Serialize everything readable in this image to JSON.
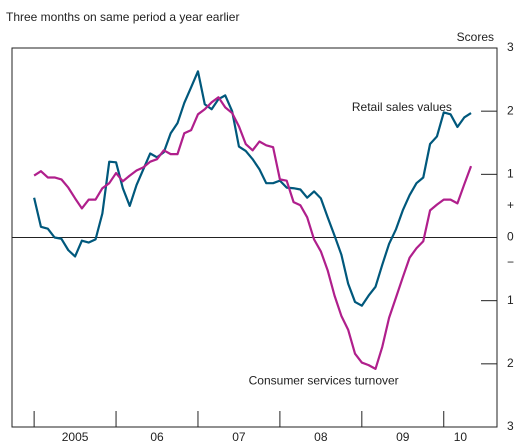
{
  "chart_data": {
    "type": "line",
    "subtitle": "Three months on same period a year earlier",
    "y_axis_label": "Scores",
    "sign_labels": [
      "+",
      "−"
    ],
    "x": [
      2005,
      2005.083,
      2005.167,
      2005.25,
      2005.333,
      2005.417,
      2005.5,
      2005.583,
      2005.667,
      2005.75,
      2005.833,
      2005.917,
      2006,
      2006.083,
      2006.167,
      2006.25,
      2006.333,
      2006.417,
      2006.5,
      2006.583,
      2006.667,
      2006.75,
      2006.833,
      2006.917,
      2007,
      2007.083,
      2007.167,
      2007.25,
      2007.333,
      2007.417,
      2007.5,
      2007.583,
      2007.667,
      2007.75,
      2007.833,
      2007.917,
      2008,
      2008.083,
      2008.167,
      2008.25,
      2008.333,
      2008.417,
      2008.5,
      2008.583,
      2008.667,
      2008.75,
      2008.833,
      2008.917,
      2009,
      2009.083,
      2009.167,
      2009.25,
      2009.333,
      2009.417,
      2009.5,
      2009.583,
      2009.667,
      2009.75,
      2009.833,
      2009.917,
      2010,
      2010.083,
      2010.167,
      2010.25,
      2010.333
    ],
    "series": [
      {
        "name": "Retail sales values",
        "color": "#00587c",
        "values": [
          0.63,
          0.17,
          0.14,
          0,
          -0.02,
          -0.2,
          -0.3,
          -0.05,
          -0.08,
          -0.03,
          0.38,
          1.2,
          1.19,
          0.78,
          0.5,
          0.83,
          1.08,
          1.33,
          1.27,
          1.35,
          1.65,
          1.81,
          2.13,
          2.38,
          2.63,
          2.11,
          2.03,
          2.19,
          2.25,
          2.0,
          1.44,
          1.37,
          1.24,
          1.08,
          0.86,
          0.86,
          0.9,
          0.79,
          0.78,
          0.76,
          0.63,
          0.73,
          0.62,
          0.32,
          0.03,
          -0.27,
          -0.73,
          -1.02,
          -1.08,
          -0.92,
          -0.78,
          -0.43,
          -0.1,
          0.13,
          0.43,
          0.67,
          0.86,
          0.95,
          1.48,
          1.6,
          1.98,
          1.95,
          1.75,
          1.9,
          1.97
        ]
      },
      {
        "name": "Consumer services turnover",
        "color": "#b01f8c",
        "values": [
          0.98,
          1.05,
          0.95,
          0.95,
          0.92,
          0.79,
          0.62,
          0.46,
          0.6,
          0.6,
          0.78,
          0.86,
          1.02,
          0.89,
          0.98,
          1.06,
          1.11,
          1.2,
          1.24,
          1.38,
          1.32,
          1.32,
          1.65,
          1.7,
          1.95,
          2.03,
          2.14,
          2.22,
          2.06,
          1.97,
          1.76,
          1.48,
          1.38,
          1.52,
          1.46,
          1.43,
          0.92,
          0.9,
          0.56,
          0.51,
          0.32,
          -0.03,
          -0.22,
          -0.52,
          -0.92,
          -1.24,
          -1.46,
          -1.84,
          -1.98,
          -2.02,
          -2.08,
          -1.73,
          -1.27,
          -0.95,
          -0.63,
          -0.32,
          -0.17,
          -0.06,
          0.43,
          0.52,
          0.6,
          0.6,
          0.54,
          0.84,
          1.13
        ]
      }
    ],
    "xlim": [
      2004.73,
      2010.65
    ],
    "xticks": [
      2005,
      2006,
      2007,
      2008,
      2009,
      2010
    ],
    "x_labels": [
      "2005",
      "06",
      "07",
      "08",
      "09",
      "10"
    ],
    "ylim": [
      -3,
      3
    ],
    "yticks": [
      3,
      2,
      1,
      0,
      {
        "value": -1,
        "label": "1"
      },
      {
        "value": -2,
        "label": "2"
      },
      {
        "value": -3,
        "label": "3"
      }
    ]
  }
}
